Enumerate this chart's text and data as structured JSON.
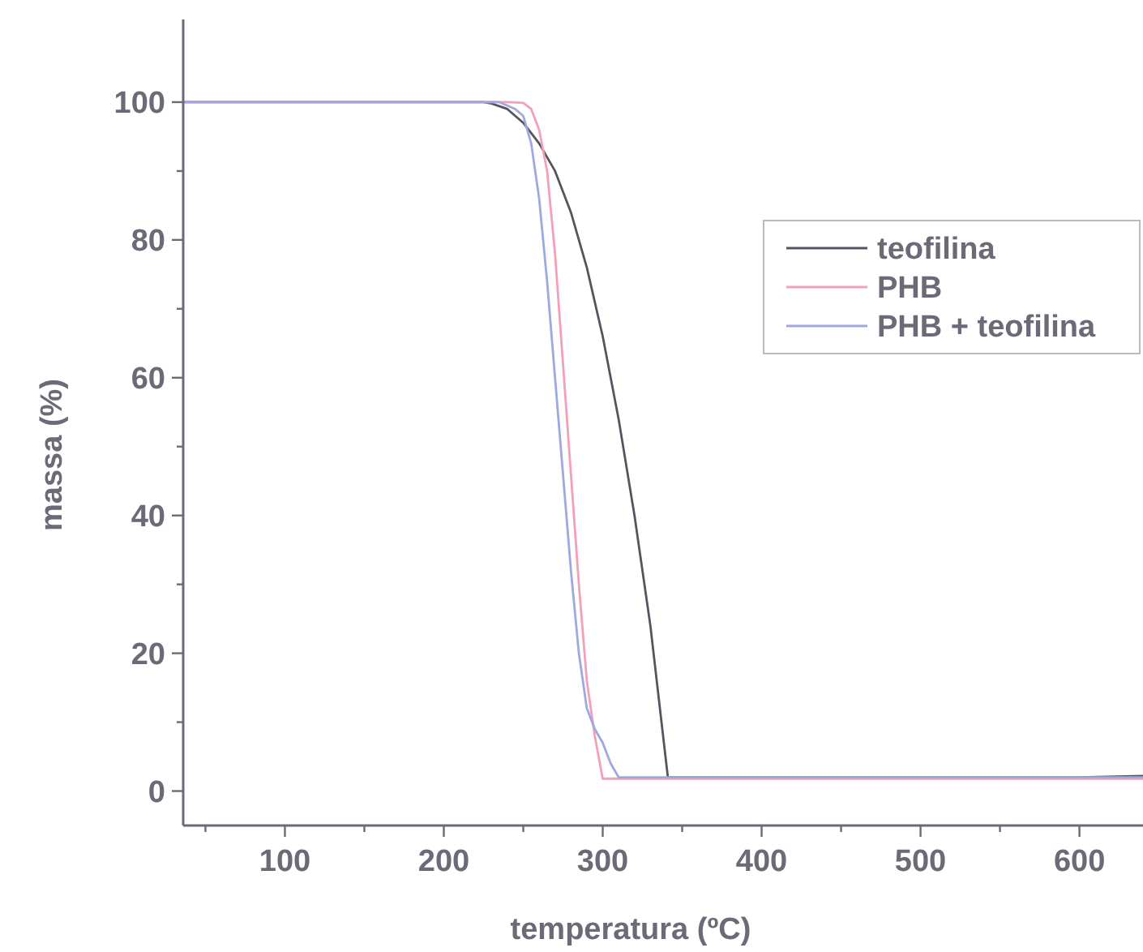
{
  "chart_data": {
    "type": "line",
    "xlabel": "temperatura (ºC)",
    "ylabel": "massa (%)",
    "xlim": [
      36,
      640
    ],
    "ylim": [
      -5,
      112
    ],
    "xticks": [
      {
        "value": 50,
        "label": null
      },
      100,
      {
        "value": 150,
        "label": null
      },
      200,
      {
        "value": 250,
        "label": null
      },
      300,
      {
        "value": 350,
        "label": null
      },
      400,
      {
        "value": 450,
        "label": null
      },
      500,
      {
        "value": 550,
        "label": null
      },
      600
    ],
    "yticks": [
      0,
      {
        "value": 10,
        "label": null
      },
      20,
      {
        "value": 30,
        "label": null
      },
      40,
      {
        "value": 50,
        "label": null
      },
      60,
      {
        "value": 70,
        "label": null
      },
      80,
      {
        "value": 90,
        "label": null
      },
      100
    ],
    "grid": false,
    "legend": "top right",
    "line_style": "solid",
    "series": [
      {
        "name": "teofilina",
        "color": "#555560",
        "x": [
          36,
          225,
          230,
          240,
          250,
          260,
          270,
          280,
          290,
          300,
          310,
          320,
          330,
          338,
          341,
          400,
          500,
          600,
          640
        ],
        "values": [
          100,
          100,
          99.8,
          99,
          97,
          94,
          90,
          84,
          76,
          66,
          54,
          40,
          24,
          8,
          2,
          2,
          2,
          2,
          2.2
        ]
      },
      {
        "name": "PHB",
        "color": "#f4a0b8",
        "x": [
          36,
          240,
          250,
          255,
          260,
          265,
          270,
          275,
          280,
          285,
          290,
          295,
          299,
          300,
          400,
          500,
          600,
          640
        ],
        "values": [
          100,
          100,
          99.9,
          99,
          96,
          90,
          78,
          62,
          46,
          30,
          16,
          8,
          3,
          1.8,
          1.8,
          1.8,
          1.8,
          1.8
        ]
      },
      {
        "name": "PHB + teofilina",
        "color": "#a0a8e0",
        "x": [
          36,
          235,
          245,
          250,
          255,
          260,
          265,
          270,
          275,
          280,
          285,
          290,
          295,
          300,
          305,
          310,
          400,
          500,
          600,
          640
        ],
        "values": [
          100,
          100,
          99,
          98,
          94,
          86,
          74,
          60,
          46,
          32,
          20,
          12,
          9,
          7,
          4,
          2,
          2,
          2,
          2,
          2
        ]
      }
    ]
  }
}
